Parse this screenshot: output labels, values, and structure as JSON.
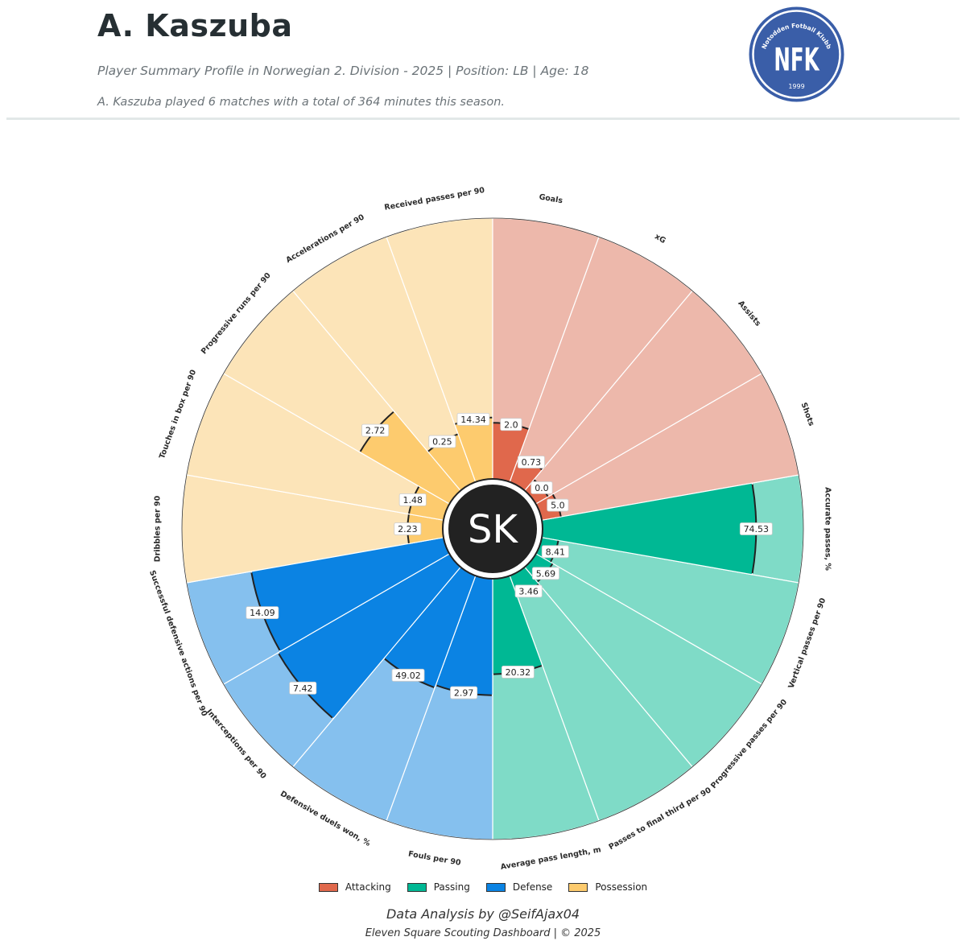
{
  "header": {
    "player_name": "A. Kaszuba",
    "subtitle": "Player Summary Profile in Norwegian 2. Division - 2025 | Position: LB | Age: 18",
    "summary": "A. Kaszuba played 6 matches with a total of 364 minutes this season.",
    "club_logo": {
      "ring_text": "Notodden Fotball Klubb",
      "monogram": "NFK",
      "year": "1999",
      "color": "#3a5ea8"
    }
  },
  "center_badge": {
    "initials": "SK"
  },
  "colors": {
    "Attacking": {
      "main": "#e0684c",
      "background": "#edb8ab"
    },
    "Passing": {
      "main": "#00b894",
      "background": "#7fdbc7"
    },
    "Defense": {
      "main": "#0b83e3",
      "background": "#85c0ee"
    },
    "Possession": {
      "main": "#fdcb6e",
      "background": "#fce4b8"
    }
  },
  "chart_data": {
    "type": "radial-bar",
    "max_percentile": 100,
    "metrics": [
      {
        "name": "Accurate passes, %",
        "category": "Passing",
        "value": "74.53",
        "percentile": 82
      },
      {
        "name": "Vertical passes per 90",
        "category": "Passing",
        "value": "8.41",
        "percentile": 7
      },
      {
        "name": "Progressive passes per 90",
        "category": "Passing",
        "value": "5.69",
        "percentile": 8
      },
      {
        "name": "Passes to final third per 90",
        "category": "Passing",
        "value": "3.46",
        "percentile": 9
      },
      {
        "name": "Average pass length, m",
        "category": "Passing",
        "value": "20.32",
        "percentile": 37
      },
      {
        "name": "Fouls per 90",
        "category": "Defense",
        "value": "2.97",
        "percentile": 45
      },
      {
        "name": "Defensive duels won, %",
        "category": "Defense",
        "value": "49.02",
        "percentile": 46
      },
      {
        "name": "Interceptions per 90",
        "category": "Defense",
        "value": "7.42",
        "percentile": 76
      },
      {
        "name": "Successful defensive actions per 90",
        "category": "Defense",
        "value": "14.09",
        "percentile": 75
      },
      {
        "name": "Dribbles per 90",
        "category": "Possession",
        "value": "2.23",
        "percentile": 14
      },
      {
        "name": "Touches in box per 90",
        "category": "Possession",
        "value": "1.48",
        "percentile": 14
      },
      {
        "name": "Progressive runs per 90",
        "category": "Possession",
        "value": "2.72",
        "percentile": 40
      },
      {
        "name": "Accelerations per 90",
        "category": "Possession",
        "value": "0.25",
        "percentile": 20
      },
      {
        "name": "Received passes per 90",
        "category": "Possession",
        "value": "14.34",
        "percentile": 24
      },
      {
        "name": "Goals",
        "category": "Attacking",
        "value": "2.0",
        "percentile": 22
      },
      {
        "name": "xG",
        "category": "Attacking",
        "value": "0.73",
        "percentile": 11
      },
      {
        "name": "Assists",
        "category": "Attacking",
        "value": "0.0",
        "percentile": 6
      },
      {
        "name": "Shots",
        "category": "Attacking",
        "value": "5.0",
        "percentile": 8
      }
    ],
    "legend": [
      "Attacking",
      "Passing",
      "Defense",
      "Possession"
    ],
    "legend_position": "bottom"
  },
  "footer": {
    "credit": "Data Analysis by @SeifAjax04",
    "copyright": "Eleven Square Scouting Dashboard | © 2025"
  }
}
